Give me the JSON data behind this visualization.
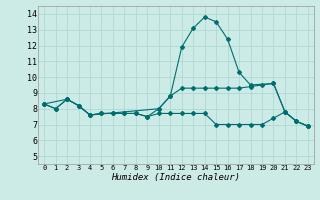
{
  "xlabel": "Humidex (Indice chaleur)",
  "bg_color": "#cceae6",
  "grid_color": "#b0d8d4",
  "line_color": "#006e6e",
  "xlim": [
    -0.5,
    23.5
  ],
  "ylim": [
    4.5,
    14.5
  ],
  "xticks": [
    0,
    1,
    2,
    3,
    4,
    5,
    6,
    7,
    8,
    9,
    10,
    11,
    12,
    13,
    14,
    15,
    16,
    17,
    18,
    19,
    20,
    21,
    22,
    23
  ],
  "yticks": [
    5,
    6,
    7,
    8,
    9,
    10,
    11,
    12,
    13,
    14
  ],
  "lines": [
    {
      "x": [
        0,
        1,
        2,
        3,
        4,
        5,
        6,
        7,
        8,
        9,
        10,
        11,
        12,
        13,
        14,
        15,
        16,
        17,
        18,
        19,
        20,
        21,
        22,
        23
      ],
      "y": [
        8.3,
        8.0,
        8.6,
        8.2,
        7.6,
        7.7,
        7.7,
        7.7,
        7.7,
        7.5,
        7.7,
        7.7,
        7.7,
        7.7,
        7.7,
        7.0,
        7.0,
        7.0,
        7.0,
        7.0,
        7.4,
        7.8,
        7.2,
        6.9
      ]
    },
    {
      "x": [
        0,
        1,
        2,
        3,
        4,
        5,
        6,
        7,
        8,
        9,
        10,
        11,
        12,
        13,
        14,
        15,
        16,
        17,
        18,
        19,
        20,
        21,
        22,
        23
      ],
      "y": [
        8.3,
        8.0,
        8.6,
        8.2,
        7.6,
        7.7,
        7.7,
        7.7,
        7.7,
        7.5,
        8.0,
        8.8,
        9.3,
        9.3,
        9.3,
        9.3,
        9.3,
        9.3,
        9.4,
        9.5,
        9.6,
        7.8,
        7.2,
        6.9
      ]
    },
    {
      "x": [
        0,
        2,
        3,
        4,
        10,
        11,
        12,
        13,
        14,
        15,
        16,
        17,
        18,
        20,
        21,
        22,
        23
      ],
      "y": [
        8.3,
        8.6,
        8.2,
        7.6,
        8.0,
        8.8,
        11.9,
        13.1,
        13.8,
        13.5,
        12.4,
        10.3,
        9.5,
        9.6,
        7.8,
        7.2,
        6.9
      ]
    }
  ]
}
